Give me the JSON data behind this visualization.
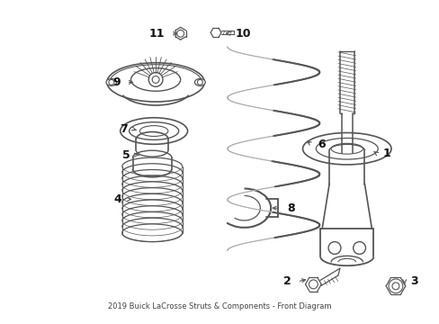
{
  "title": "2019 Buick LaCrosse Struts & Components - Front Diagram",
  "bg_color": "#ffffff",
  "line_color": "#555555",
  "figsize": [
    4.89,
    3.6
  ],
  "dpi": 100,
  "label_fontsize": 9,
  "title_fontsize": 6
}
